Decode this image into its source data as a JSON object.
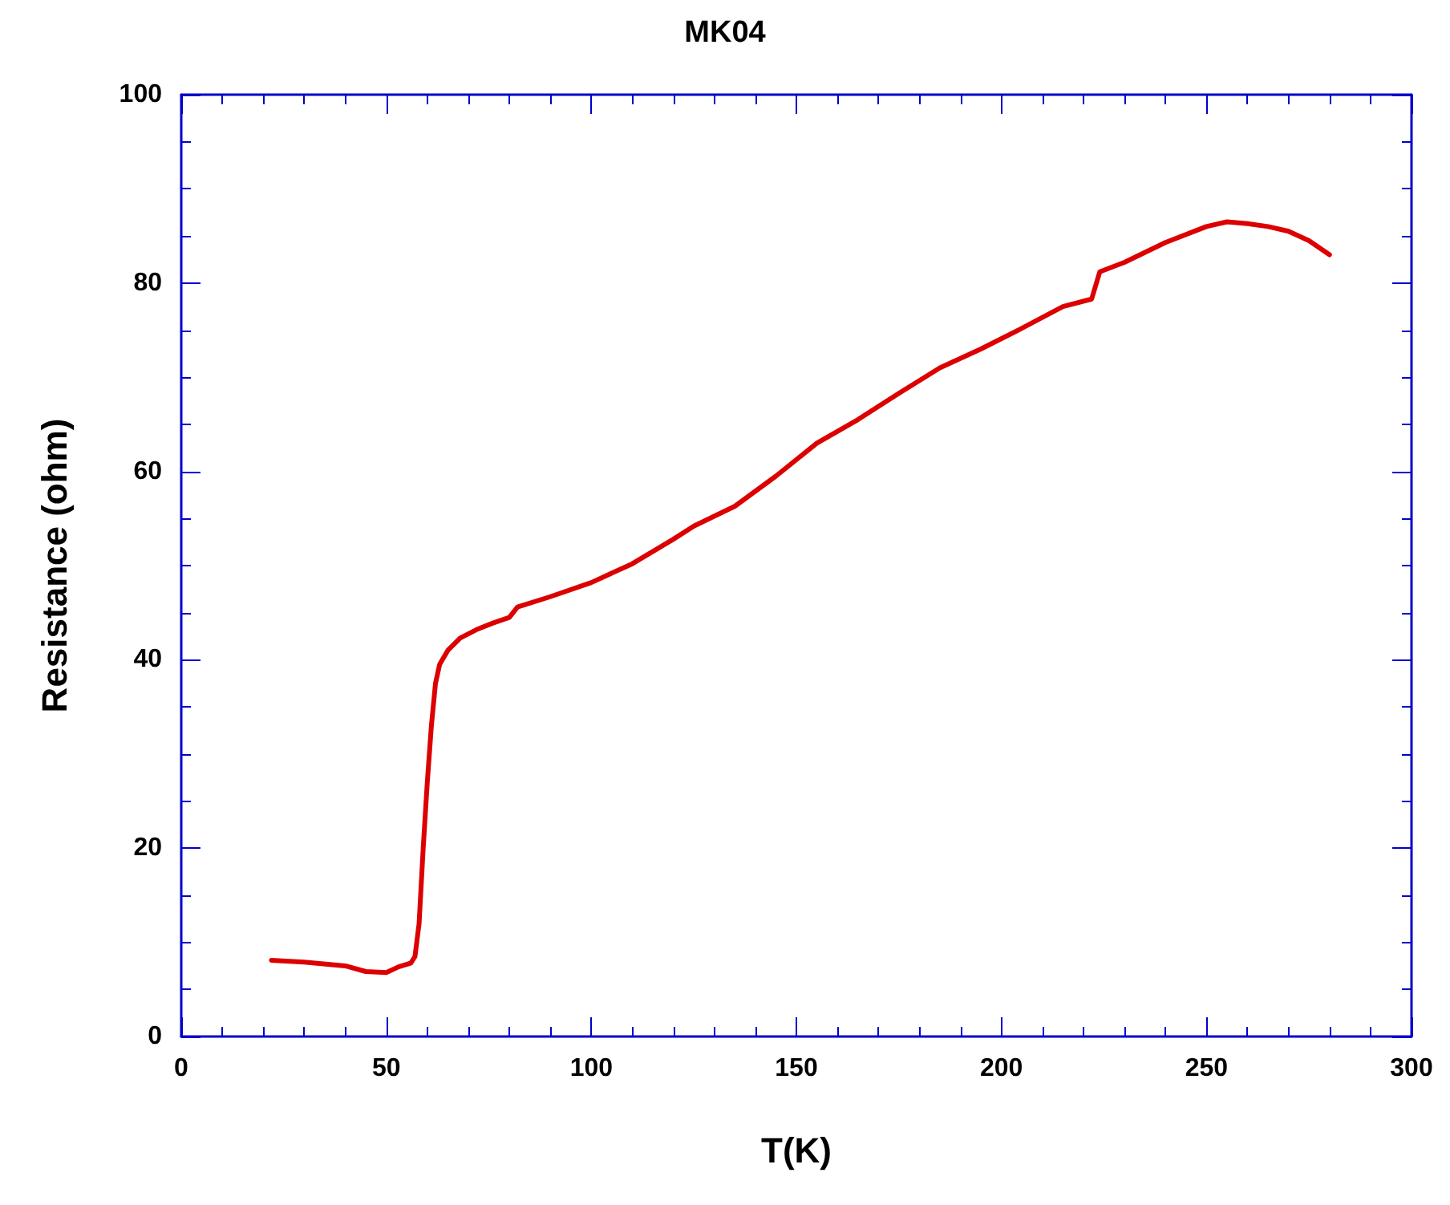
{
  "chart_data": {
    "type": "line",
    "title": "MK04",
    "xlabel": "T(K)",
    "ylabel": "Resistance (ohm)",
    "xlim": [
      0,
      300
    ],
    "xticks": [
      0,
      50,
      100,
      150,
      200,
      250,
      300
    ],
    "ylim": [
      0,
      100
    ],
    "yticks": [
      0,
      20,
      40,
      60,
      80,
      100
    ],
    "grid": false,
    "marker": "none",
    "line_style": "solid",
    "series": [
      {
        "color": "#dd0000",
        "x": [
          22,
          30,
          40,
          45,
          50,
          53,
          56,
          57,
          58,
          59,
          60,
          61,
          62,
          63,
          65,
          68,
          72,
          76,
          80,
          82,
          90,
          100,
          110,
          120,
          125,
          135,
          145,
          155,
          165,
          175,
          185,
          195,
          205,
          215,
          222,
          224,
          230,
          240,
          250,
          255,
          260,
          265,
          270,
          275,
          280
        ],
        "values": [
          8.1,
          7.9,
          7.5,
          6.9,
          6.8,
          7.4,
          7.8,
          8.5,
          12,
          20,
          27,
          33,
          37.5,
          39.5,
          41,
          42.3,
          43.2,
          43.9,
          44.5,
          45.6,
          46.7,
          48.2,
          50.2,
          52.8,
          54.2,
          56.3,
          59.5,
          63,
          65.5,
          68.3,
          71,
          73,
          75.2,
          77.5,
          78.3,
          81.2,
          82.2,
          84.3,
          86,
          86.5,
          86.3,
          86,
          85.5,
          84.5,
          83
        ]
      }
    ]
  }
}
